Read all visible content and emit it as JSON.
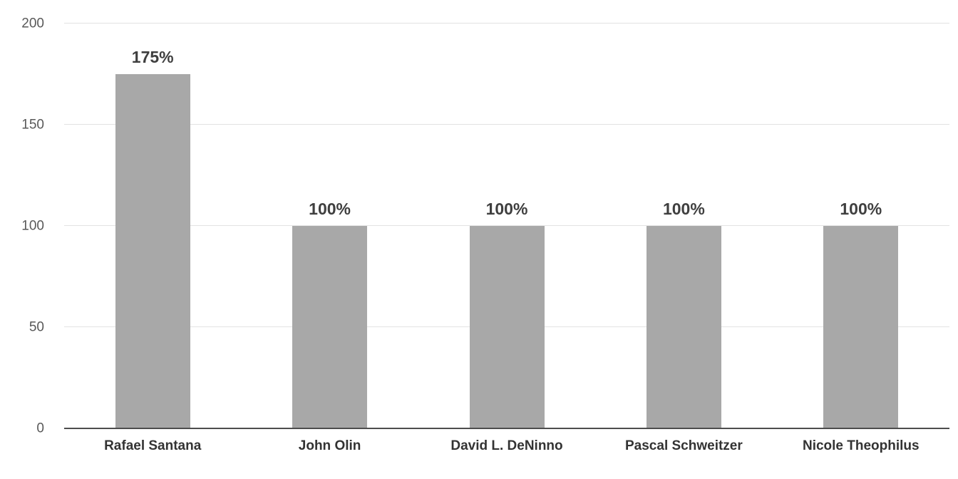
{
  "chart_data": {
    "type": "bar",
    "categories": [
      "Rafael Santana",
      "John Olin",
      "David L. DeNinno",
      "Pascal Schweitzer",
      "Nicole Theophilus"
    ],
    "values": [
      175,
      100,
      100,
      100,
      100
    ],
    "value_labels": [
      "175%",
      "100%",
      "100%",
      "100%",
      "100%"
    ],
    "title": "",
    "xlabel": "",
    "ylabel": "",
    "ylim": [
      0,
      200
    ],
    "yticks": [
      0,
      50,
      100,
      150,
      200
    ],
    "grid": true,
    "legend": "none",
    "bar_color": "#a8a8a8",
    "value_label_color": "#3f3f3f",
    "category_label_color": "#333333",
    "tick_label_color": "#595959",
    "gridline_color": "#e2e2e2",
    "axis_color": "#4d4d4d",
    "background_color": "#ffffff"
  }
}
